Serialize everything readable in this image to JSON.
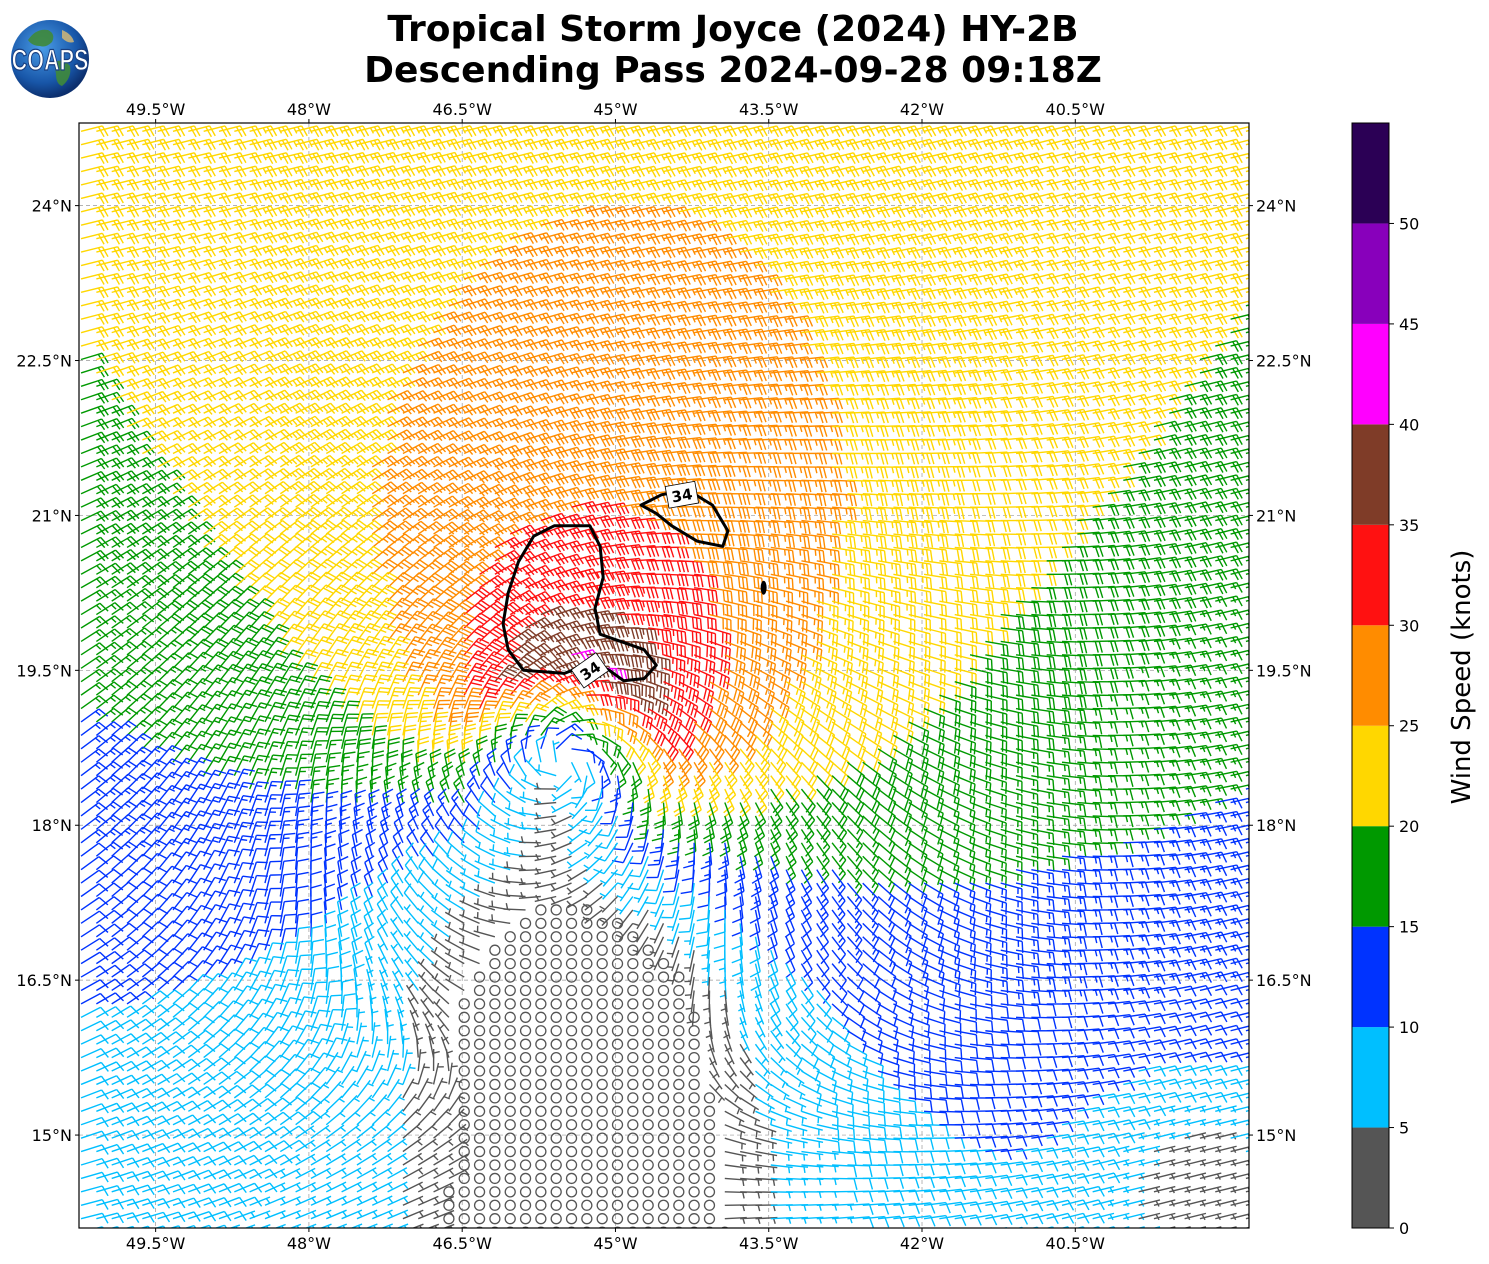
{
  "title": {
    "line1": "Tropical Storm Joyce (2024) HY-2B",
    "line2": "Descending Pass 2024-09-28 09:18Z"
  },
  "logo": {
    "text": "COAPS",
    "icon": "globe-icon"
  },
  "map": {
    "lon_range": [
      -50.25,
      -38.8
    ],
    "lat_range": [
      14.1,
      24.8
    ],
    "lon_ticks": [
      {
        "value": -49.5,
        "label": "49.5°W"
      },
      {
        "value": -48.0,
        "label": "48°W"
      },
      {
        "value": -46.5,
        "label": "46.5°W"
      },
      {
        "value": -45.0,
        "label": "45°W"
      },
      {
        "value": -43.5,
        "label": "43.5°W"
      },
      {
        "value": -42.0,
        "label": "42°W"
      },
      {
        "value": -40.5,
        "label": "40.5°W"
      }
    ],
    "lat_ticks": [
      {
        "value": 24.0,
        "label": "24°N"
      },
      {
        "value": 22.5,
        "label": "22.5°N"
      },
      {
        "value": 21.0,
        "label": "21°N"
      },
      {
        "value": 19.5,
        "label": "19.5°N"
      },
      {
        "value": 18.0,
        "label": "18°N"
      },
      {
        "value": 16.5,
        "label": "16.5°N"
      },
      {
        "value": 15.0,
        "label": "15°N"
      }
    ],
    "gridlines": true,
    "storm_center": {
      "lon": -45.5,
      "lat": 18.6
    },
    "contour_value": "34",
    "contour_labels": [
      {
        "lon": -44.35,
        "lat": 21.2,
        "text": "34"
      },
      {
        "lon": -45.25,
        "lat": 19.5,
        "text": "34"
      }
    ],
    "contour_34kt_main": [
      [
        -45.5,
        19.47
      ],
      [
        -45.9,
        19.5
      ],
      [
        -46.05,
        19.7
      ],
      [
        -46.1,
        19.95
      ],
      [
        -46.05,
        20.25
      ],
      [
        -45.95,
        20.55
      ],
      [
        -45.8,
        20.8
      ],
      [
        -45.6,
        20.9
      ],
      [
        -45.25,
        20.9
      ],
      [
        -45.15,
        20.7
      ],
      [
        -45.12,
        20.4
      ],
      [
        -45.2,
        20.1
      ],
      [
        -45.15,
        19.85
      ],
      [
        -44.95,
        19.78
      ],
      [
        -44.72,
        19.7
      ],
      [
        -44.6,
        19.55
      ],
      [
        -44.72,
        19.42
      ],
      [
        -44.92,
        19.4
      ],
      [
        -45.06,
        19.5
      ],
      [
        -45.22,
        19.58
      ],
      [
        -45.5,
        19.47
      ]
    ],
    "contour_34kt_north": [
      [
        -44.75,
        21.1
      ],
      [
        -44.55,
        21.2
      ],
      [
        -44.3,
        21.25
      ],
      [
        -44.05,
        21.1
      ],
      [
        -43.9,
        20.85
      ],
      [
        -43.95,
        20.7
      ],
      [
        -44.2,
        20.75
      ],
      [
        -44.45,
        20.9
      ],
      [
        -44.6,
        21.02
      ],
      [
        -44.75,
        21.1
      ]
    ]
  },
  "wind_field": {
    "units": "knots",
    "row_step_deg": 0.13,
    "col_step_deg": 0.15
  },
  "colorbar": {
    "label": "Wind Speed (knots)",
    "ticks": [
      "0",
      "5",
      "10",
      "15",
      "20",
      "25",
      "30",
      "35",
      "40",
      "45",
      "50"
    ],
    "bins": [
      {
        "min": 0,
        "max": 5,
        "color": "#555555"
      },
      {
        "min": 5,
        "max": 10,
        "color": "#00bfff"
      },
      {
        "min": 10,
        "max": 15,
        "color": "#0033ff"
      },
      {
        "min": 15,
        "max": 20,
        "color": "#009900"
      },
      {
        "min": 20,
        "max": 25,
        "color": "#ffd700"
      },
      {
        "min": 25,
        "max": 30,
        "color": "#ff8c00"
      },
      {
        "min": 30,
        "max": 35,
        "color": "#ff1111"
      },
      {
        "min": 35,
        "max": 40,
        "color": "#7f3c28"
      },
      {
        "min": 40,
        "max": 45,
        "color": "#ff00ff"
      },
      {
        "min": 45,
        "max": 50,
        "color": "#8800bb"
      },
      {
        "min": 50,
        "max": 55,
        "color": "#2b0055"
      }
    ]
  }
}
